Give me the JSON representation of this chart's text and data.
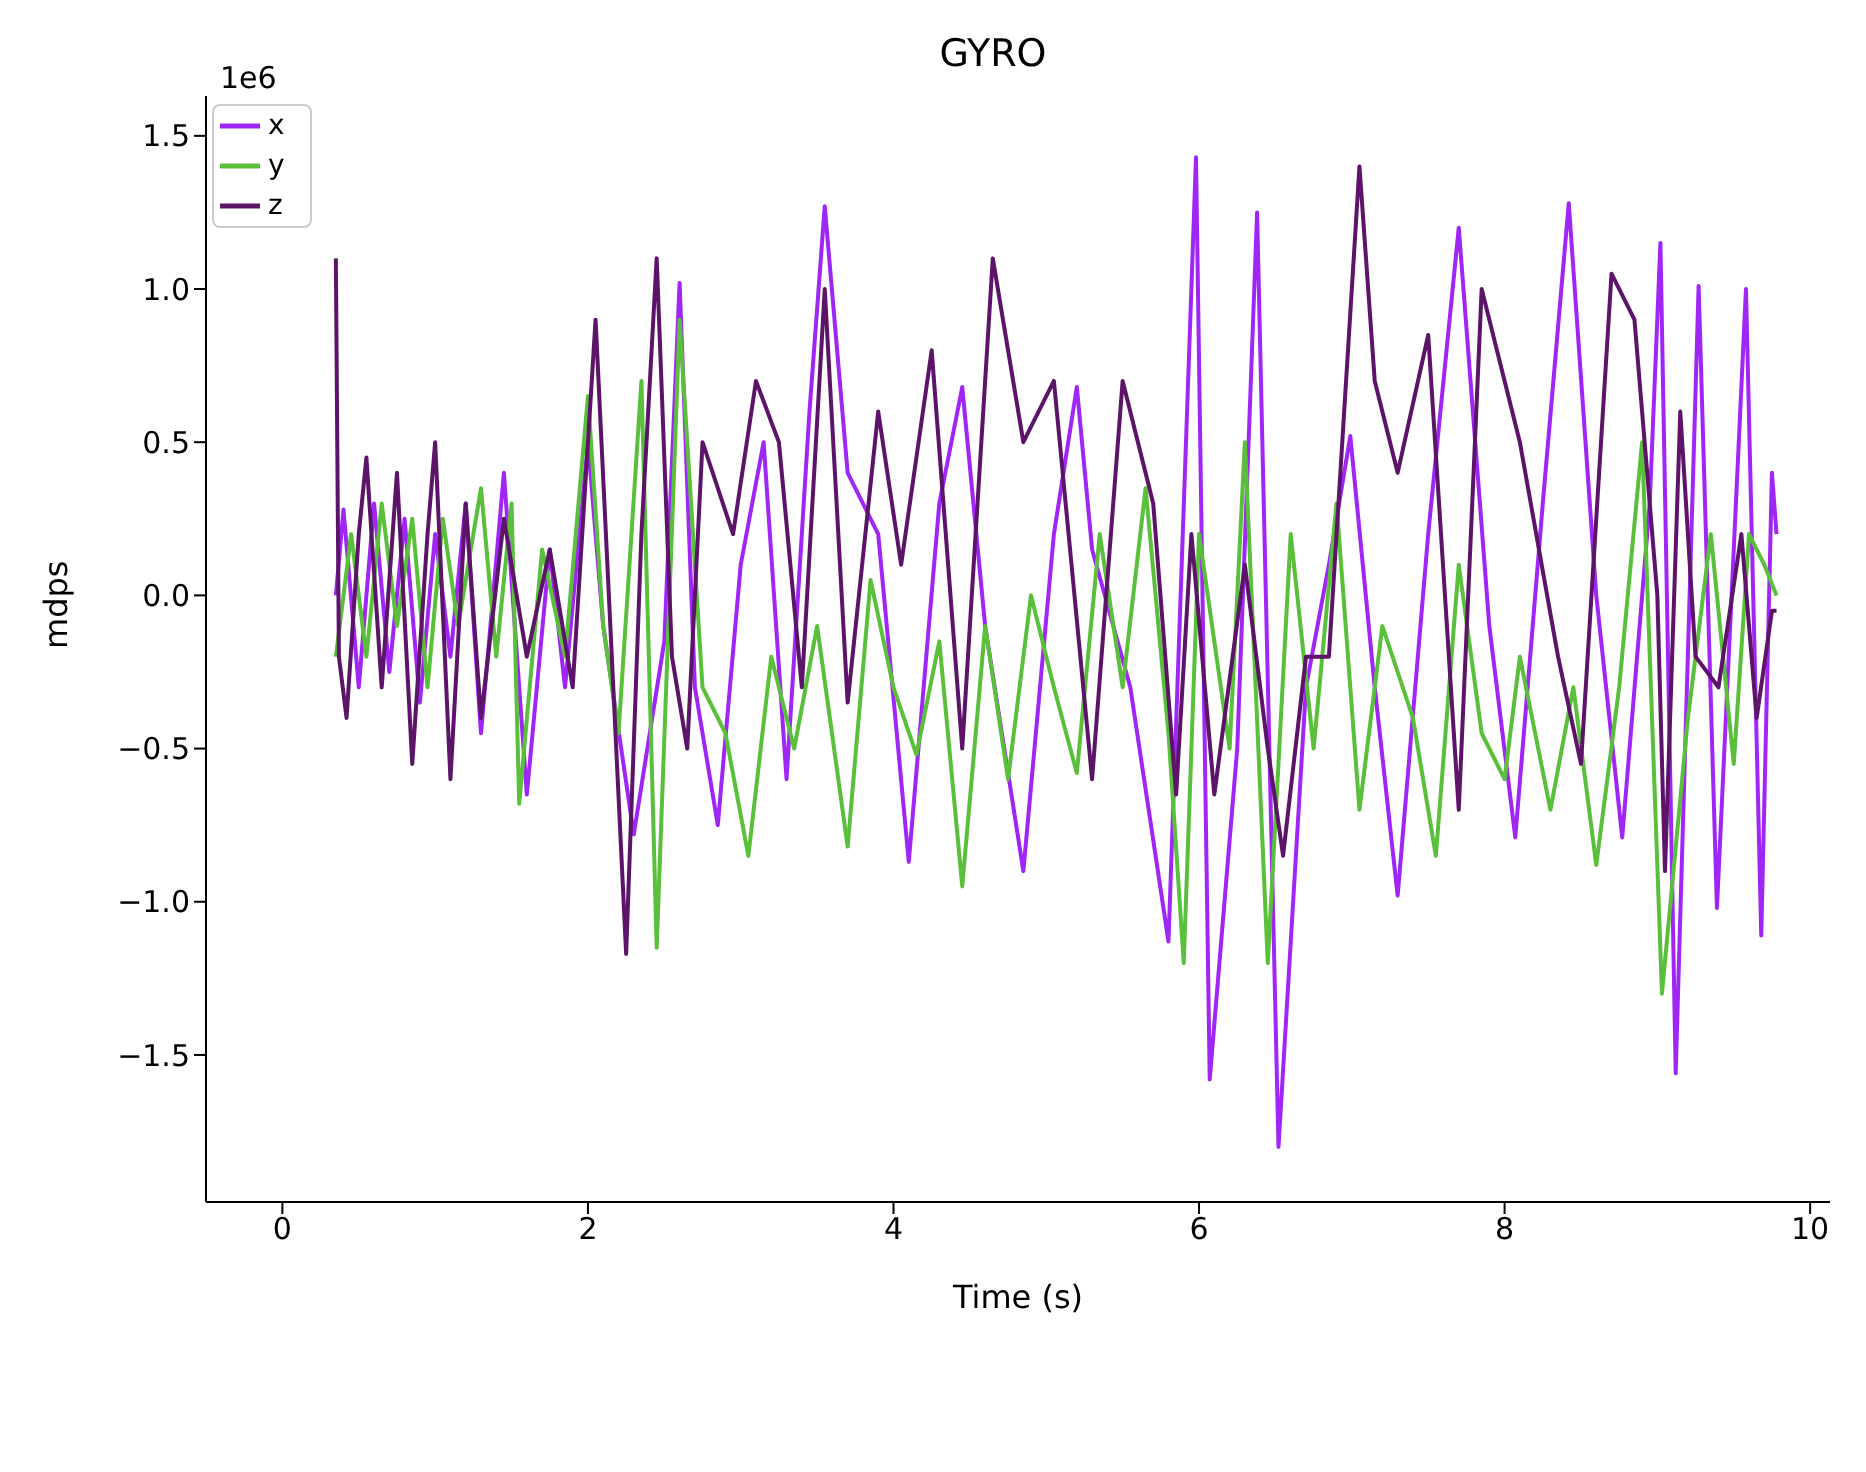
{
  "chart_data": {
    "type": "line",
    "title": "GYRO",
    "xlabel": "Time (s)",
    "ylabel": "mdps",
    "annotations": [
      "1e6"
    ],
    "xlim": [
      -0.5,
      10.13
    ],
    "xticks": [
      0,
      2,
      4,
      6,
      8,
      10
    ],
    "ylim": [
      -1.98,
      1.63
    ],
    "yticks": [
      {
        "value": -1.5,
        "label": "−1.5"
      },
      {
        "value": -1.0,
        "label": "−1.0"
      },
      {
        "value": -0.5,
        "label": "−0.5"
      },
      {
        "value": 0,
        "label": "0.0"
      },
      {
        "value": 0.5,
        "label": "0.5"
      },
      {
        "value": 1.0,
        "label": "1.0"
      },
      {
        "value": 1.5,
        "label": "1.5"
      }
    ],
    "grid": false,
    "legend": "top left",
    "marker": "none",
    "line_style": "solid",
    "series": [
      {
        "name": "x",
        "color": "#a026f5",
        "x": [
          0.35,
          0.4,
          0.5,
          0.6,
          0.7,
          0.8,
          0.9,
          1.0,
          1.1,
          1.2,
          1.3,
          1.45,
          1.6,
          1.75,
          1.85,
          2.0,
          2.1,
          2.3,
          2.5,
          2.6,
          2.7,
          2.85,
          3.0,
          3.15,
          3.3,
          3.45,
          3.55,
          3.7,
          3.9,
          4.1,
          4.3,
          4.45,
          4.6,
          4.85,
          5.05,
          5.2,
          5.3,
          5.55,
          5.8,
          5.98,
          6.07,
          6.25,
          6.38,
          6.52,
          6.7,
          6.85,
          6.99,
          7.15,
          7.3,
          7.5,
          7.7,
          7.9,
          8.07,
          8.25,
          8.42,
          8.6,
          8.77,
          8.95,
          9.02,
          9.12,
          9.27,
          9.39,
          9.58,
          9.68,
          9.75,
          9.78
        ],
        "values": [
          0.0,
          0.28,
          -0.3,
          0.3,
          -0.25,
          0.25,
          -0.35,
          0.2,
          -0.2,
          0.3,
          -0.45,
          0.4,
          -0.65,
          0.15,
          -0.3,
          0.5,
          -0.1,
          -0.78,
          -0.15,
          1.02,
          -0.3,
          -0.75,
          0.1,
          0.5,
          -0.6,
          0.6,
          1.27,
          0.4,
          0.2,
          -0.87,
          0.3,
          0.68,
          -0.1,
          -0.9,
          0.2,
          0.68,
          0.15,
          -0.3,
          -1.13,
          1.43,
          -1.58,
          -0.5,
          1.25,
          -1.8,
          -0.3,
          0.1,
          0.52,
          -0.3,
          -0.98,
          0.2,
          1.2,
          -0.1,
          -0.79,
          0.3,
          1.28,
          0.0,
          -0.79,
          0.3,
          1.15,
          -1.56,
          1.01,
          -1.02,
          1.0,
          -1.11,
          0.4,
          0.2
        ]
      },
      {
        "name": "y",
        "color": "#5abf3a",
        "x": [
          0.35,
          0.45,
          0.55,
          0.65,
          0.75,
          0.85,
          0.95,
          1.05,
          1.15,
          1.3,
          1.4,
          1.5,
          1.55,
          1.7,
          1.85,
          2.0,
          2.1,
          2.2,
          2.35,
          2.45,
          2.6,
          2.75,
          2.9,
          3.05,
          3.2,
          3.35,
          3.5,
          3.7,
          3.85,
          4.0,
          4.15,
          4.3,
          4.45,
          4.6,
          4.75,
          4.9,
          5.05,
          5.2,
          5.35,
          5.5,
          5.65,
          5.8,
          5.9,
          6.0,
          6.2,
          6.3,
          6.45,
          6.6,
          6.75,
          6.9,
          7.05,
          7.2,
          7.4,
          7.55,
          7.7,
          7.85,
          8.0,
          8.1,
          8.3,
          8.45,
          8.6,
          8.75,
          8.9,
          9.03,
          9.2,
          9.35,
          9.5,
          9.6,
          9.7,
          9.78
        ],
        "values": [
          -0.2,
          0.2,
          -0.2,
          0.3,
          -0.1,
          0.25,
          -0.3,
          0.25,
          -0.1,
          0.35,
          -0.2,
          0.3,
          -0.68,
          0.15,
          -0.2,
          0.65,
          -0.1,
          -0.45,
          0.7,
          -1.15,
          0.9,
          -0.3,
          -0.45,
          -0.85,
          -0.2,
          -0.5,
          -0.1,
          -0.82,
          0.05,
          -0.3,
          -0.52,
          -0.15,
          -0.95,
          -0.1,
          -0.6,
          0.0,
          -0.3,
          -0.58,
          0.2,
          -0.3,
          0.35,
          -0.45,
          -1.2,
          0.2,
          -0.5,
          0.5,
          -1.2,
          0.2,
          -0.5,
          0.3,
          -0.7,
          -0.1,
          -0.4,
          -0.85,
          0.1,
          -0.45,
          -0.6,
          -0.2,
          -0.7,
          -0.3,
          -0.88,
          -0.3,
          0.5,
          -1.3,
          -0.4,
          0.2,
          -0.55,
          0.2,
          0.1,
          0.0
        ]
      },
      {
        "name": "z",
        "color": "#5c1468",
        "x": [
          0.35,
          0.37,
          0.42,
          0.5,
          0.55,
          0.65,
          0.75,
          0.85,
          0.95,
          1.0,
          1.1,
          1.2,
          1.3,
          1.45,
          1.6,
          1.75,
          1.9,
          2.05,
          2.25,
          2.35,
          2.45,
          2.55,
          2.65,
          2.75,
          2.95,
          3.1,
          3.25,
          3.4,
          3.55,
          3.7,
          3.9,
          4.05,
          4.25,
          4.45,
          4.65,
          4.85,
          5.05,
          5.3,
          5.5,
          5.7,
          5.85,
          5.95,
          6.1,
          6.3,
          6.45,
          6.55,
          6.7,
          6.85,
          7.05,
          7.15,
          7.3,
          7.5,
          7.7,
          7.85,
          8.1,
          8.35,
          8.5,
          8.7,
          8.85,
          9.0,
          9.05,
          9.15,
          9.25,
          9.4,
          9.55,
          9.65,
          9.75,
          9.78
        ],
        "values": [
          1.1,
          -0.2,
          -0.4,
          0.2,
          0.45,
          -0.3,
          0.4,
          -0.55,
          0.2,
          0.5,
          -0.6,
          0.3,
          -0.4,
          0.25,
          -0.2,
          0.15,
          -0.3,
          0.9,
          -1.17,
          0.2,
          1.1,
          -0.2,
          -0.5,
          0.5,
          0.2,
          0.7,
          0.5,
          -0.3,
          1.0,
          -0.35,
          0.6,
          0.1,
          0.8,
          -0.5,
          1.1,
          0.5,
          0.7,
          -0.6,
          0.7,
          0.3,
          -0.65,
          0.2,
          -0.65,
          0.1,
          -0.5,
          -0.85,
          -0.2,
          -0.2,
          1.4,
          0.7,
          0.4,
          0.85,
          -0.7,
          1.0,
          0.5,
          -0.2,
          -0.55,
          1.05,
          0.9,
          0.0,
          -0.9,
          0.6,
          -0.2,
          -0.3,
          0.2,
          -0.4,
          -0.05,
          -0.05
        ]
      }
    ]
  }
}
